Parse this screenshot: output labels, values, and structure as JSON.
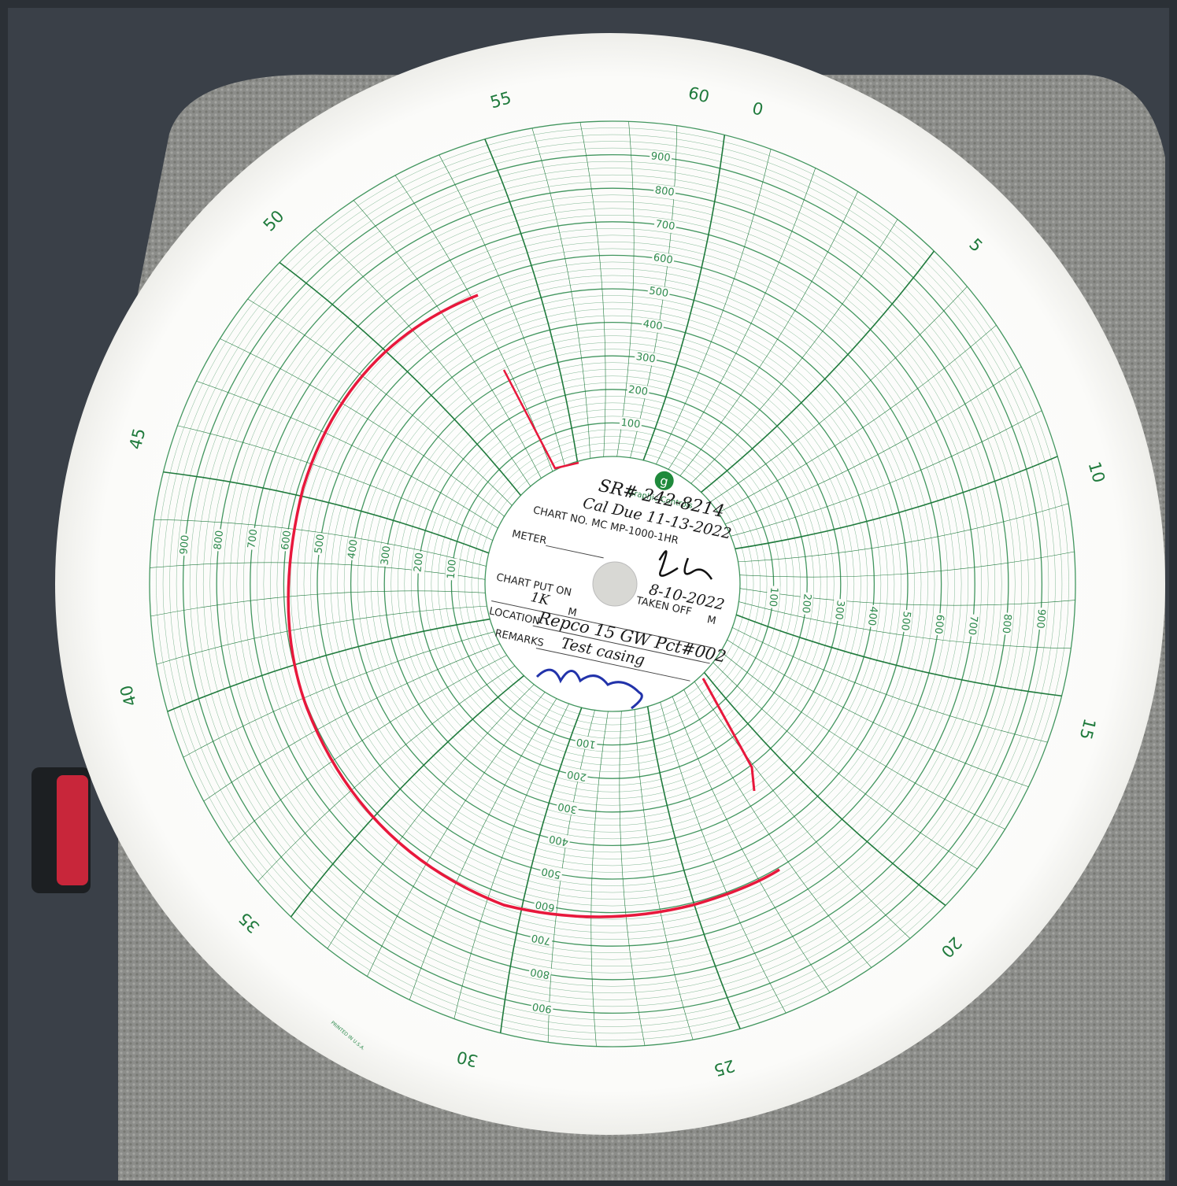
{
  "chart_paper": {
    "logo": "g",
    "brand": "Graphic Controls",
    "chart_no": "CHART NO. MC MP-1000-1HR",
    "top_minute": "60",
    "minute_labels": [
      "0",
      "5",
      "10",
      "15",
      "20",
      "25",
      "30",
      "35",
      "40",
      "45",
      "50",
      "55"
    ],
    "pressure_labels": [
      "100",
      "200",
      "300",
      "400",
      "500",
      "600",
      "700",
      "800",
      "900"
    ],
    "fields": {
      "meter": "METER",
      "chart_put_on": "CHART PUT ON",
      "put_on_m": "M",
      "taken_off": "TAKEN OFF",
      "taken_off_m": "M",
      "location": "LOCATION",
      "remarks": "REMARKS"
    },
    "handwriting": {
      "serial": "SR# 242-8214",
      "cal_due": "Cal Due 11-13-2022",
      "date": "8-10-2022",
      "put_on": "1K",
      "location": "Repco 15 GW Pct#002",
      "remarks": "Test casing"
    },
    "printed_in": "PRINTED IN U.S.A."
  }
}
